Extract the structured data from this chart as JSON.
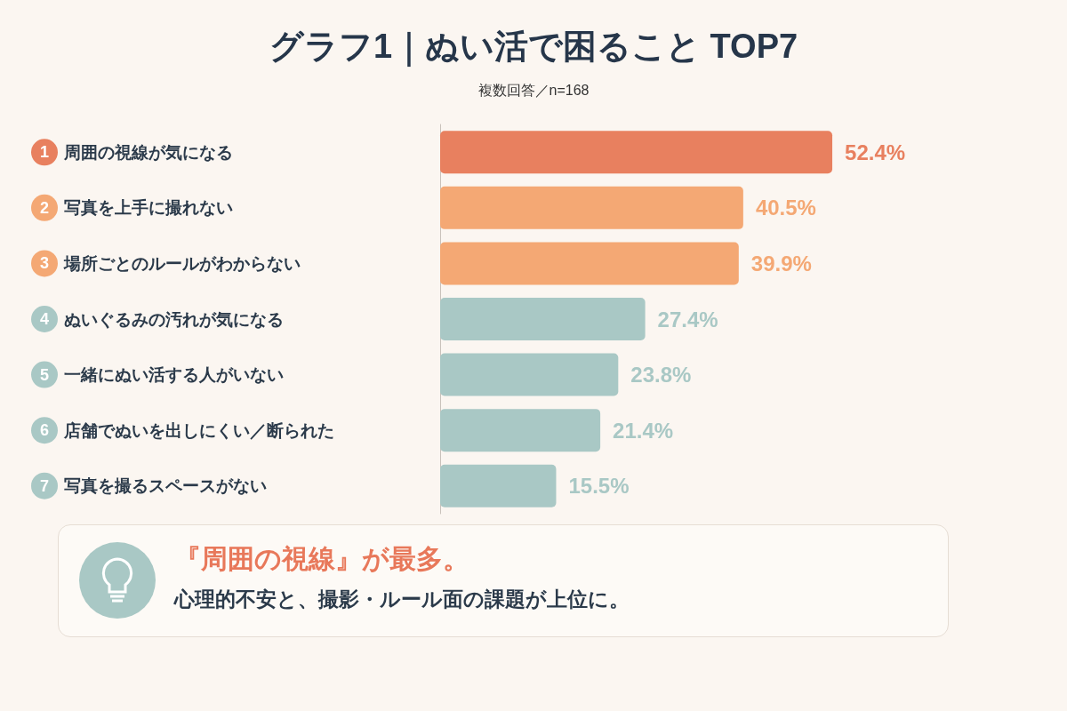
{
  "chart_data": {
    "type": "bar",
    "orientation": "horizontal",
    "title": "グラフ1｜ぬい活で困ること TOP7",
    "subtitle": "複数回答／n=168",
    "categories": [
      "周囲の視線が気になる",
      "写真を上手に撮れない",
      "場所ごとのルールがわからない",
      "ぬいぐるみの汚れが気になる",
      "一緒にぬい活する人がいない",
      "店舗でぬいを出しにくい／断られた",
      "写真を撮るスペースがない"
    ],
    "values": [
      52.4,
      40.5,
      39.9,
      27.4,
      23.8,
      21.4,
      15.5
    ],
    "value_labels": [
      "52.4%",
      "40.5%",
      "39.9%",
      "27.4%",
      "23.8%",
      "21.4%",
      "15.5%"
    ],
    "colors": [
      "#e8805f",
      "#f4a874",
      "#f4a874",
      "#a9c8c5",
      "#a9c8c5",
      "#a9c8c5",
      "#a9c8c5"
    ],
    "annotations": [
      "1",
      "2",
      "3",
      "4",
      "5",
      "6",
      "7",
      "『周囲の視線』が最多。",
      "心理的不安と、撮影・ルール面の課題が上位に。"
    ]
  }
}
